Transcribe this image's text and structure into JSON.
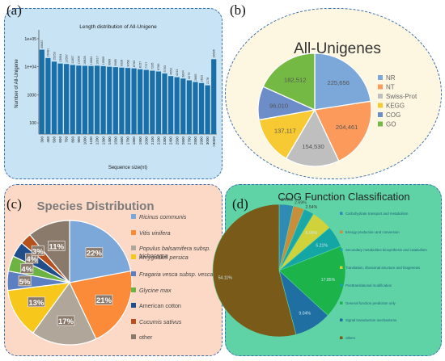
{
  "panels": {
    "a": "(a)",
    "b": "(b)",
    "c": "(c)",
    "d": "(d)"
  },
  "chart_data": [
    {
      "id": "a",
      "type": "bar",
      "title": "Length distribution of All-Unigene",
      "xlabel": "Sequence size(nt)",
      "ylabel": "Number of All-Unigene",
      "yscale": "log",
      "yticks": [
        "1e+05",
        "1e+04",
        "1000",
        "100"
      ],
      "categories": [
        "300",
        "400",
        "500",
        "600",
        "700",
        "800",
        "900",
        "1000",
        "1100",
        "1200",
        "1300",
        "1400",
        "1500",
        "1600",
        "1700",
        "1800",
        "1900",
        "2000",
        "2100",
        "2200",
        "2300",
        "2400",
        "2500",
        "2600",
        "2700",
        "2800",
        "2900",
        "3000",
        ">3000"
      ],
      "values": [
        40637,
        20481,
        15253,
        13054,
        12557,
        11607,
        11008,
        10828,
        10664,
        10917,
        10509,
        9989,
        9685,
        9328,
        9058,
        8763,
        8157,
        7727,
        7235,
        6780,
        5763,
        4653,
        4243,
        3804,
        3279,
        2865,
        2622,
        2178,
        18636
      ],
      "bar_color": "#1b6fa8"
    },
    {
      "id": "b",
      "type": "pie",
      "title": "All-Unigenes",
      "labels": [
        "NR",
        "NT",
        "Swiss-Prot",
        "KEGG",
        "COG",
        "GO"
      ],
      "values": [
        225656,
        204461,
        154530,
        137117,
        96010,
        182512
      ],
      "value_labels": [
        "225,656",
        "204,461",
        "154,530",
        "137,117",
        "96,010",
        "182,512"
      ],
      "colors": [
        "#7ba7d9",
        "#fb9a5a",
        "#bfbfbf",
        "#f7ca33",
        "#6c8dc8",
        "#74b944"
      ]
    },
    {
      "id": "c",
      "type": "pie",
      "title": "Species Distribution",
      "labels": [
        "Ricinus communis",
        "Vitis vinifera",
        "Populus balsamifera subsp. trichocarpa",
        "Amygdalus persica",
        "Fragaria vesca subsp. vesca",
        "Glycine max",
        "American cotton",
        "Cucumis sativus",
        "other"
      ],
      "values": [
        22,
        21,
        17,
        13,
        5,
        4,
        4,
        3,
        11
      ],
      "value_labels": [
        "22%",
        "21%",
        "17%",
        "13%",
        "5%",
        "4%",
        "4%",
        "3%",
        "11%"
      ],
      "colors": [
        "#7ba7d9",
        "#fb8a39",
        "#b0a69a",
        "#f7c71c",
        "#5b7fc2",
        "#6cb344",
        "#1f4e8a",
        "#b6501d",
        "#8a7a6c"
      ]
    },
    {
      "id": "d",
      "type": "pie",
      "title": "COG Function Classification",
      "labels": [
        "Carbohydrate transport and metabolism",
        "Energy production and conversion",
        "Secondary metabolites biosynthesis and catabolism",
        "Translation, ribosomal structure and biogenesis",
        "Posttranslational modification",
        "General function prediction only",
        "Signal transduction mechanisms",
        "others"
      ],
      "values": [
        3.47,
        2.69,
        2.54,
        5.09,
        5.21,
        17.85,
        9.04,
        54.11
      ],
      "value_labels": [
        "3.47%",
        "2.69%",
        "2.54%",
        "5.09%",
        "5.21%",
        "17.85%",
        "9.04%",
        "54.11%"
      ],
      "colors": [
        "#2e8bb3",
        "#c98e3c",
        "#19a7a7",
        "#cfd23a",
        "#14a5a5",
        "#1bb34a",
        "#1f6fa3",
        "#7a5a18"
      ]
    }
  ]
}
